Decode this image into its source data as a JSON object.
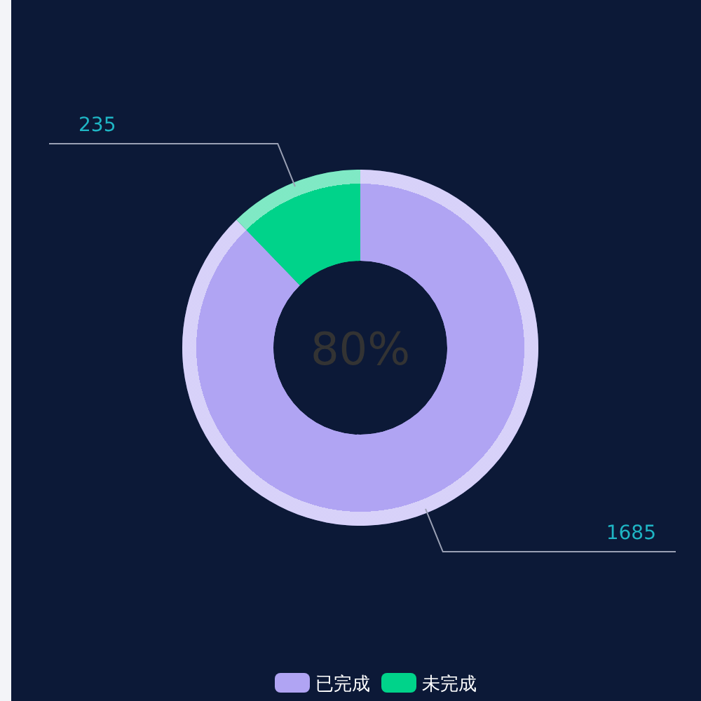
{
  "chart_data": {
    "type": "donut",
    "categories": [
      "已完成",
      "未完成"
    ],
    "values": [
      1685,
      235
    ],
    "colors": [
      "#b0a4f3",
      "#00d38a"
    ],
    "data_labels": true,
    "annotations": [
      "80%"
    ],
    "legend": "bottom"
  }
}
